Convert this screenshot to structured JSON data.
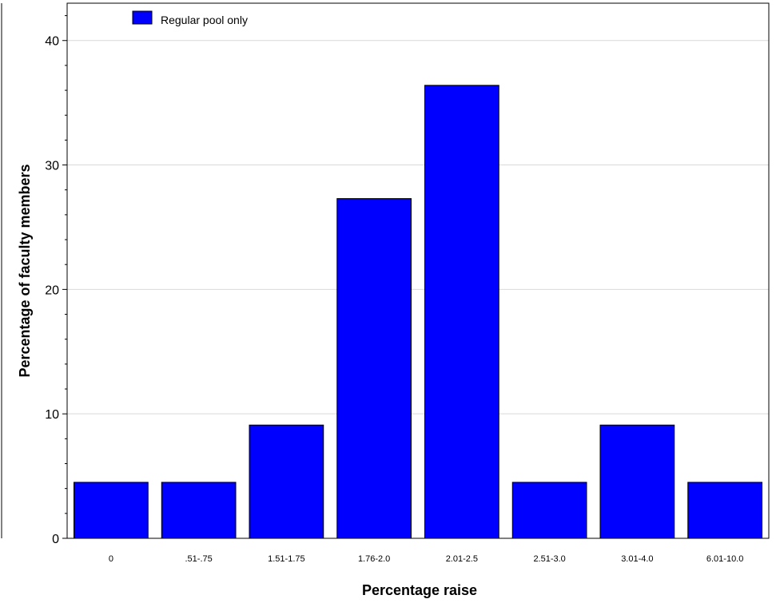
{
  "chart_data": {
    "type": "bar",
    "title": "",
    "xlabel": "Percentage raise",
    "ylabel": "Percentage of faculty members",
    "categories": [
      "0",
      ".51-.75",
      "1.51-1.75",
      "1.76-2.0",
      "2.01-2.5",
      "2.51-3.0",
      "3.01-4.0",
      "6.01-10.0"
    ],
    "series": [
      {
        "name": "Regular pool only",
        "color": "#0000ff",
        "values": [
          4.5,
          4.5,
          9.1,
          27.3,
          36.4,
          4.5,
          9.1,
          4.5
        ]
      }
    ],
    "ylim": [
      0,
      43
    ],
    "yticks": [
      0,
      10,
      20,
      30,
      40
    ],
    "grid": true,
    "legend_position": "top-left"
  }
}
